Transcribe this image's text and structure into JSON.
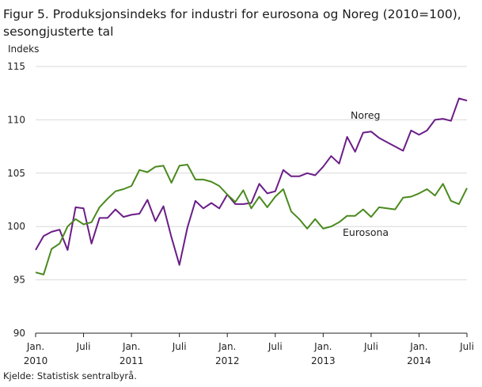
{
  "title_line1": "Figur 5. Produksjonsindeks for industri for eurosona og Noreg (2010=100),",
  "title_line2": "sesongjusterte tal",
  "source": "Kjelde: Statistisk sentralbyrå.",
  "chart_data": {
    "type": "line",
    "ylabel": "Indeks",
    "ylim": [
      90,
      115
    ],
    "yticks": [
      90,
      95,
      100,
      105,
      110,
      115
    ],
    "grid": true,
    "xticks": [
      {
        "index": 0,
        "line1": "Jan.",
        "line2": "2010"
      },
      {
        "index": 6,
        "line1": "Juli",
        "line2": ""
      },
      {
        "index": 12,
        "line1": "Jan.",
        "line2": "2011"
      },
      {
        "index": 18,
        "line1": "Juli",
        "line2": ""
      },
      {
        "index": 24,
        "line1": "Jan.",
        "line2": "2012"
      },
      {
        "index": 30,
        "line1": "Juli",
        "line2": ""
      },
      {
        "index": 36,
        "line1": "Jan.",
        "line2": "2013"
      },
      {
        "index": 42,
        "line1": "Juli",
        "line2": ""
      },
      {
        "index": 48,
        "line1": "Jan.",
        "line2": "2014"
      },
      {
        "index": 54,
        "line1": "Juli",
        "line2": ""
      }
    ],
    "x_count": 55,
    "series": [
      {
        "name": "Noreg",
        "color": "#6b1d87",
        "values": [
          97.8,
          99.1,
          99.5,
          99.7,
          97.8,
          101.8,
          101.7,
          98.4,
          100.8,
          100.8,
          101.6,
          100.9,
          101.1,
          101.2,
          102.5,
          100.5,
          101.9,
          99.0,
          96.4,
          99.9,
          102.4,
          101.7,
          102.2,
          101.7,
          103.0,
          102.1,
          102.1,
          102.2,
          104.0,
          103.1,
          103.3,
          105.3,
          104.7,
          104.7,
          105.0,
          104.8,
          105.6,
          106.6,
          105.9,
          108.4,
          107.0,
          108.8,
          108.9,
          108.3,
          107.9,
          107.5,
          107.1,
          109.0,
          108.6,
          109.0,
          110.0,
          110.1,
          109.9,
          112.0,
          111.8
        ]
      },
      {
        "name": "Eurosona",
        "color": "#4a8a1e",
        "values": [
          95.7,
          95.5,
          97.9,
          98.4,
          100.0,
          100.7,
          100.2,
          100.4,
          101.8,
          102.6,
          103.3,
          103.5,
          103.8,
          105.3,
          105.1,
          105.6,
          105.7,
          104.1,
          105.7,
          105.8,
          104.4,
          104.4,
          104.2,
          103.8,
          103.0,
          102.3,
          103.4,
          101.7,
          102.8,
          101.8,
          102.8,
          103.5,
          101.4,
          100.7,
          99.8,
          100.7,
          99.8,
          100.0,
          100.4,
          101.0,
          101.0,
          101.6,
          100.9,
          101.8,
          101.7,
          101.6,
          102.7,
          102.8,
          103.1,
          103.5,
          102.9,
          104.0,
          102.4,
          102.1,
          103.6
        ]
      }
    ]
  }
}
